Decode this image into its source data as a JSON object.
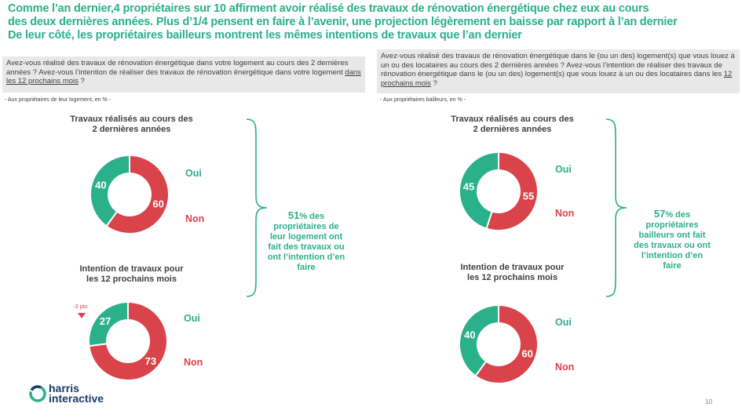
{
  "title": {
    "line1": "Comme l’an dernier,4 propriétaires sur 10 affirment avoir réalisé des travaux de rénovation énergétique chez eux au cours",
    "line2": "des deux dernières années. Plus d’1/4 pensent en faire à l’avenir, une projection légèrement en baisse par rapport à l’an dernier",
    "line3": "De leur côté, les propriétaires bailleurs montrent les mêmes intentions de travaux que l’an dernier"
  },
  "left": {
    "question_pre": "Avez-vous réalisé des travaux de rénovation énergétique dans votre logement au cours des 2 dernières années ? Avez-vous l’intention de réaliser des travaux de rénovation énergétique dans votre logement ",
    "question_underlined": "dans les 12 prochains mois",
    "question_post": " ?",
    "base": "- Aux propriétaires de leur logement, en %      -",
    "block1_title_l1": "Travaux réalisés au cours des",
    "block1_title_l2": "2 dernières années",
    "block2_title_l1": "Intention de travaux pour",
    "block2_title_l2": "les 12 prochains mois",
    "delta": "-3 pts",
    "summary_pct": "51",
    "summary_text": "% des propriétaires de leur logement ont fait des travaux ou ont l’intention d’en faire"
  },
  "right": {
    "question_pre": "Avez-vous réalisé des travaux de rénovation énergétique dans le (ou un des) logement(s) que vous louez à un ou des locataires au cours des 2 dernières années ? Avez-vous l’intention de réaliser des travaux de rénovation énergétique dans le (ou un des) logement(s) que vous louez à un ou des locataires dans les ",
    "question_underlined": "12 prochains mois",
    "question_post": " ?",
    "base": "- Aux propriétaires bailleurs, en %      -",
    "block1_title_l1": "Travaux réalisés au cours des",
    "block1_title_l2": "2 dernières années",
    "block2_title_l1": "Intention de travaux pour",
    "block2_title_l2": "les 12 prochains mois",
    "summary_pct": "57",
    "summary_text": "% des propriétaires bailleurs ont fait des travaux ou ont l’intention d’en faire"
  },
  "labels": {
    "oui": "Oui",
    "non": "Non"
  },
  "colors": {
    "oui": "#2ab08a",
    "non": "#d9434a",
    "accent": "#2ab08a"
  },
  "chart_data": [
    {
      "type": "pie",
      "title": "Travaux réalisés au cours des 2 dernières années",
      "group": "propriétaires de leur logement",
      "categories": [
        "Oui",
        "Non"
      ],
      "values": [
        40,
        60
      ]
    },
    {
      "type": "pie",
      "title": "Intention de travaux pour les 12 prochains mois",
      "group": "propriétaires de leur logement",
      "categories": [
        "Oui",
        "Non"
      ],
      "values": [
        27,
        73
      ]
    },
    {
      "type": "pie",
      "title": "Travaux réalisés au cours des 2 dernières années",
      "group": "propriétaires bailleurs",
      "categories": [
        "Oui",
        "Non"
      ],
      "values": [
        45,
        55
      ]
    },
    {
      "type": "pie",
      "title": "Intention de travaux pour les 12 prochains mois",
      "group": "propriétaires bailleurs",
      "categories": [
        "Oui",
        "Non"
      ],
      "values": [
        40,
        60
      ]
    }
  ],
  "logo": {
    "line1": "harris",
    "line2": "interactive"
  },
  "page_number": "10"
}
